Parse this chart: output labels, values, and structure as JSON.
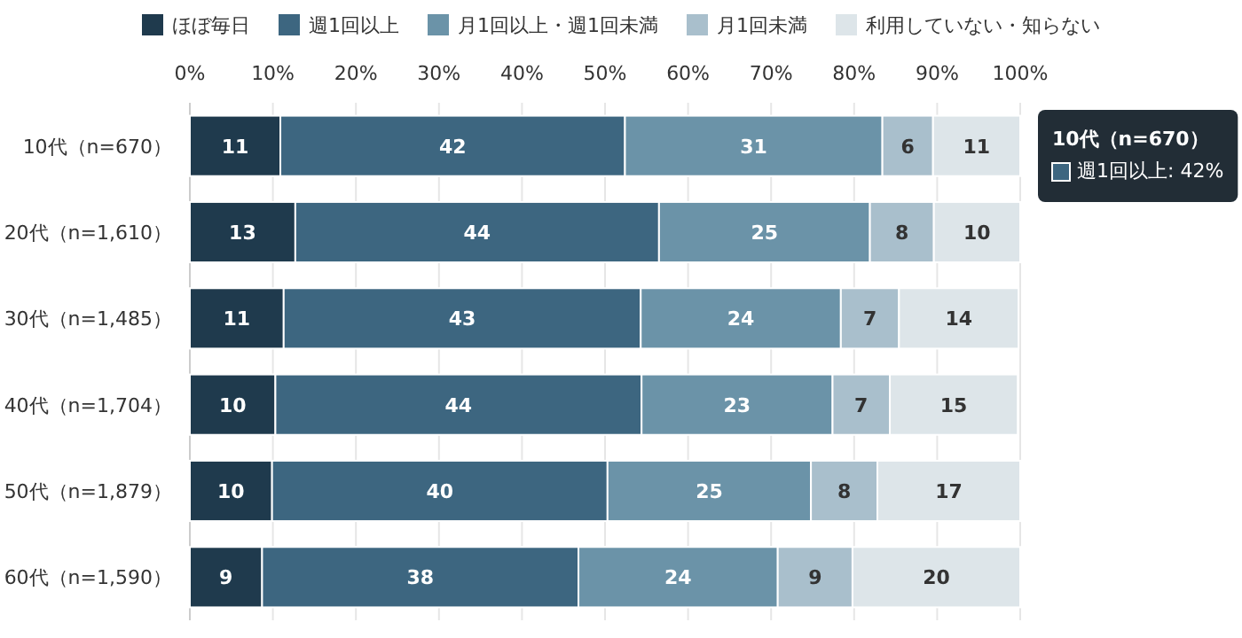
{
  "chart_data": {
    "type": "bar",
    "orientation": "horizontal",
    "stacked": true,
    "categories": [
      "10代（n=670）",
      "20代（n=1,610）",
      "30代（n=1,485）",
      "40代（n=1,704）",
      "50代（n=1,879）",
      "60代（n=1,590）"
    ],
    "series": [
      {
        "name": "ほぼ毎日",
        "color": "#1f3a4d",
        "values": [
          10.9,
          12.7,
          11.3,
          10.3,
          9.9,
          8.7
        ],
        "value_labels": [
          "11",
          "13",
          "11",
          "10",
          "10",
          "9"
        ]
      },
      {
        "name": "週1回以上",
        "color": "#3d6680",
        "values": [
          41.5,
          43.8,
          43.0,
          44.1,
          40.4,
          38.1
        ],
        "value_labels": [
          "42",
          "44",
          "43",
          "44",
          "40",
          "38"
        ]
      },
      {
        "name": "月1回以上・週1回未満",
        "color": "#6b93a8",
        "values": [
          31.0,
          25.4,
          24.1,
          23.0,
          24.5,
          24.0
        ],
        "value_labels": [
          "31",
          "25",
          "24",
          "23",
          "25",
          "24"
        ]
      },
      {
        "name": "月1回未満",
        "color": "#a9bfcc",
        "values": [
          6.1,
          7.7,
          7.0,
          6.9,
          8.0,
          9.0
        ],
        "value_labels": [
          "6",
          "8",
          "7",
          "7",
          "8",
          "9"
        ]
      },
      {
        "name": "利用していない・知らない",
        "color": "#dde5e9",
        "values": [
          10.5,
          10.4,
          14.4,
          15.4,
          17.2,
          20.2
        ],
        "value_labels": [
          "11",
          "10",
          "14",
          "15",
          "17",
          "20"
        ]
      }
    ],
    "xlim": [
      0,
      100
    ],
    "xticks": [
      {
        "value": 0,
        "label": "0%"
      },
      {
        "value": 10,
        "label": "10%"
      },
      {
        "value": 20,
        "label": "20%"
      },
      {
        "value": 30,
        "label": "30%"
      },
      {
        "value": 40,
        "label": "40%"
      },
      {
        "value": 50,
        "label": "50%"
      },
      {
        "value": 60,
        "label": "60%"
      },
      {
        "value": 70,
        "label": "70%"
      },
      {
        "value": 80,
        "label": "80%"
      },
      {
        "value": 90,
        "label": "90%"
      },
      {
        "value": 100,
        "label": "100%"
      }
    ],
    "grid": "x",
    "legend": "top",
    "annotations": [
      "10代（n=670）",
      "週1回以上: 42%"
    ]
  }
}
